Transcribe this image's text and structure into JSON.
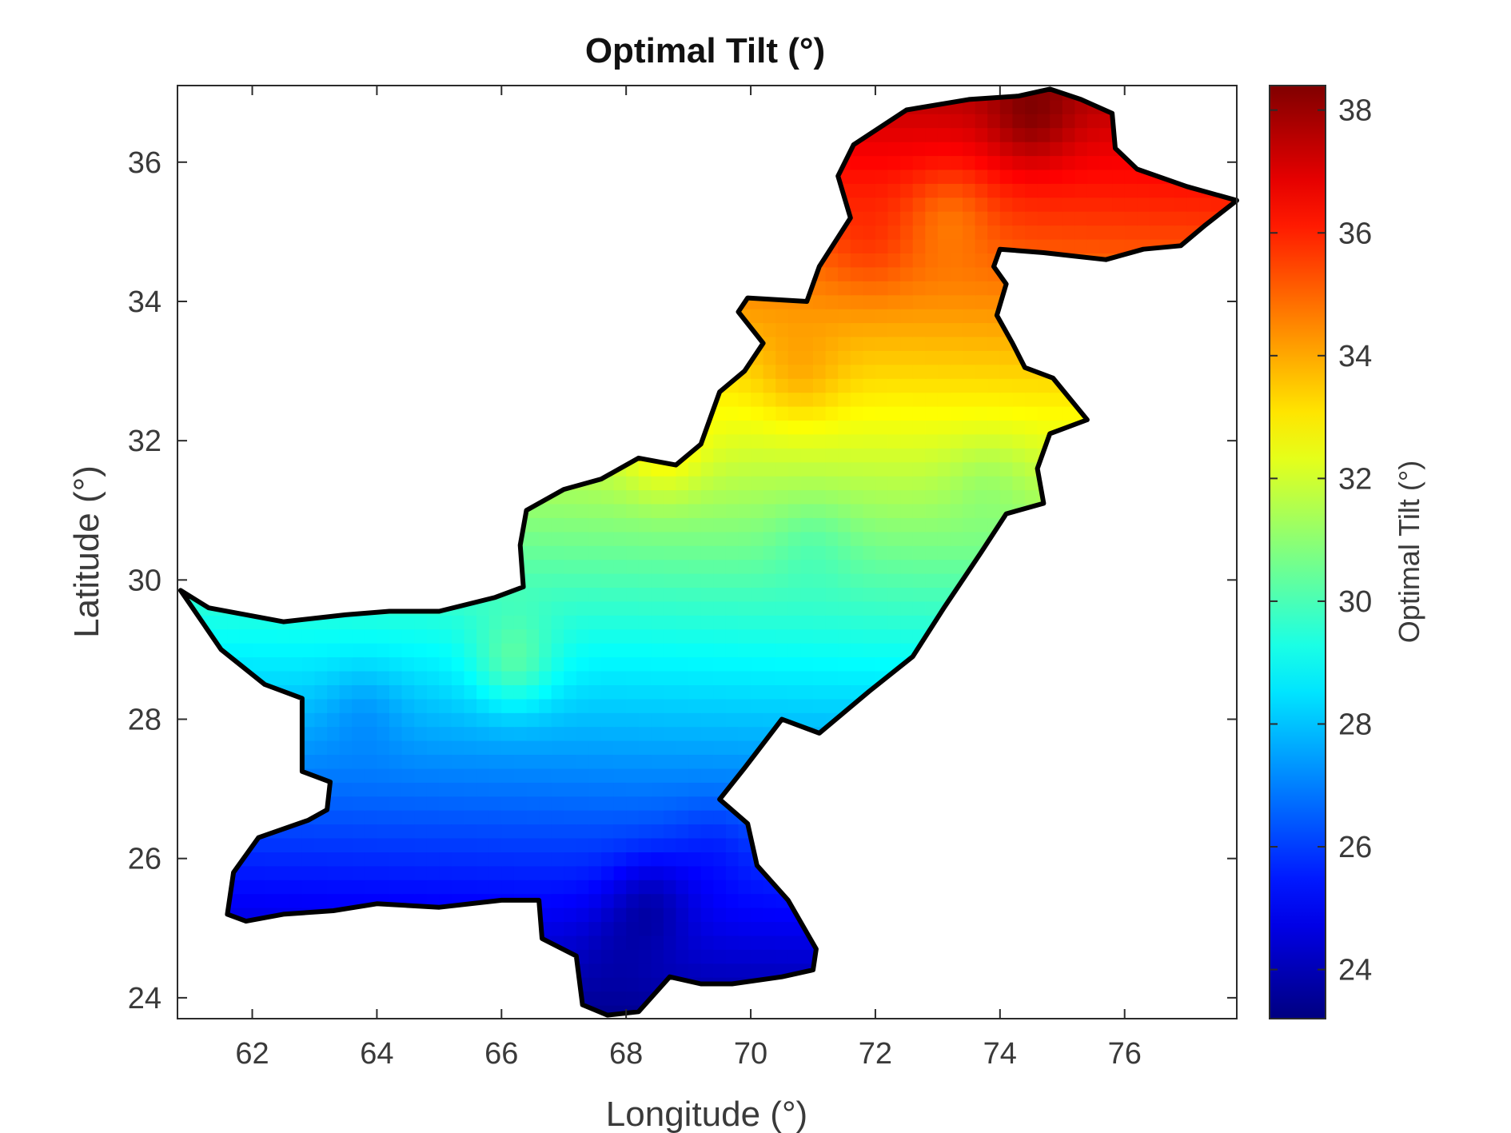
{
  "chart_data": {
    "type": "heatmap",
    "title": "Optimal Tilt (°)",
    "xlabel": "Longitude (°)",
    "ylabel": "Latitude (°)",
    "colorbar_label": "Optimal Tilt (°)",
    "colormap": "jet",
    "xlim": [
      60.8,
      77.8
    ],
    "ylim": [
      23.7,
      37.1
    ],
    "x_ticks": [
      62,
      64,
      66,
      68,
      70,
      72,
      74,
      76
    ],
    "y_ticks": [
      24,
      26,
      28,
      30,
      32,
      34,
      36
    ],
    "clim": [
      23.2,
      38.4
    ],
    "colorbar_ticks": [
      24,
      26,
      28,
      30,
      32,
      34,
      36,
      38
    ],
    "grid": false,
    "region": "Pakistan",
    "boundary": [
      [
        60.85,
        29.85
      ],
      [
        61.3,
        29.6
      ],
      [
        62.5,
        29.4
      ],
      [
        63.5,
        29.5
      ],
      [
        64.2,
        29.55
      ],
      [
        65.0,
        29.55
      ],
      [
        65.9,
        29.75
      ],
      [
        66.35,
        29.9
      ],
      [
        66.3,
        30.5
      ],
      [
        66.4,
        31.0
      ],
      [
        67.0,
        31.3
      ],
      [
        67.6,
        31.45
      ],
      [
        68.2,
        31.75
      ],
      [
        68.8,
        31.65
      ],
      [
        69.2,
        31.95
      ],
      [
        69.5,
        32.7
      ],
      [
        69.9,
        33.0
      ],
      [
        70.2,
        33.4
      ],
      [
        69.8,
        33.85
      ],
      [
        69.95,
        34.05
      ],
      [
        70.9,
        34.0
      ],
      [
        71.1,
        34.5
      ],
      [
        71.6,
        35.2
      ],
      [
        71.4,
        35.8
      ],
      [
        71.65,
        36.25
      ],
      [
        72.5,
        36.75
      ],
      [
        73.5,
        36.9
      ],
      [
        74.3,
        36.95
      ],
      [
        74.8,
        37.05
      ],
      [
        75.3,
        36.9
      ],
      [
        75.8,
        36.7
      ],
      [
        75.85,
        36.2
      ],
      [
        76.2,
        35.9
      ],
      [
        77.0,
        35.65
      ],
      [
        77.8,
        35.45
      ],
      [
        77.3,
        35.1
      ],
      [
        76.9,
        34.8
      ],
      [
        76.3,
        34.75
      ],
      [
        75.7,
        34.6
      ],
      [
        75.2,
        34.65
      ],
      [
        74.7,
        34.7
      ],
      [
        74.0,
        34.75
      ],
      [
        73.9,
        34.5
      ],
      [
        74.1,
        34.25
      ],
      [
        73.95,
        33.8
      ],
      [
        74.2,
        33.4
      ],
      [
        74.4,
        33.05
      ],
      [
        74.85,
        32.9
      ],
      [
        75.4,
        32.3
      ],
      [
        74.8,
        32.1
      ],
      [
        74.6,
        31.6
      ],
      [
        74.7,
        31.1
      ],
      [
        74.1,
        30.95
      ],
      [
        73.7,
        30.4
      ],
      [
        73.4,
        30.0
      ],
      [
        73.1,
        29.6
      ],
      [
        72.6,
        28.9
      ],
      [
        71.9,
        28.4
      ],
      [
        71.1,
        27.8
      ],
      [
        70.5,
        28.0
      ],
      [
        69.9,
        27.3
      ],
      [
        69.5,
        26.85
      ],
      [
        69.95,
        26.5
      ],
      [
        70.1,
        25.9
      ],
      [
        70.6,
        25.4
      ],
      [
        71.05,
        24.7
      ],
      [
        71.0,
        24.4
      ],
      [
        70.5,
        24.3
      ],
      [
        69.7,
        24.2
      ],
      [
        69.2,
        24.2
      ],
      [
        68.7,
        24.3
      ],
      [
        68.2,
        23.8
      ],
      [
        67.7,
        23.75
      ],
      [
        67.3,
        23.9
      ],
      [
        67.2,
        24.6
      ],
      [
        66.65,
        24.85
      ],
      [
        66.6,
        25.4
      ],
      [
        66.0,
        25.4
      ],
      [
        65.0,
        25.3
      ],
      [
        64.0,
        25.35
      ],
      [
        63.3,
        25.25
      ],
      [
        62.5,
        25.2
      ],
      [
        61.9,
        25.1
      ],
      [
        61.6,
        25.2
      ],
      [
        61.7,
        25.8
      ],
      [
        62.1,
        26.3
      ],
      [
        62.9,
        26.55
      ],
      [
        63.2,
        26.7
      ],
      [
        63.25,
        27.1
      ],
      [
        62.8,
        27.25
      ],
      [
        62.8,
        27.9
      ],
      [
        62.8,
        28.3
      ],
      [
        62.2,
        28.5
      ],
      [
        61.5,
        29.0
      ],
      [
        60.85,
        29.85
      ]
    ],
    "anomalies": [
      {
        "lon": 63.8,
        "lat": 28.2,
        "value": -0.6
      },
      {
        "lon": 66.2,
        "lat": 28.8,
        "value": 1.4
      },
      {
        "lon": 68.4,
        "lat": 25.4,
        "value": -1.2
      },
      {
        "lon": 67.8,
        "lat": 24.8,
        "value": -0.4
      },
      {
        "lon": 69.4,
        "lat": 26.2,
        "value": -0.5
      },
      {
        "lon": 71.0,
        "lat": 30.6,
        "value": -0.5
      },
      {
        "lon": 68.6,
        "lat": 31.8,
        "value": 0.9
      },
      {
        "lon": 70.8,
        "lat": 32.9,
        "value": 0.7
      },
      {
        "lon": 73.2,
        "lat": 35.3,
        "value": -0.9
      },
      {
        "lon": 74.5,
        "lat": 36.6,
        "value": 1.1
      },
      {
        "lon": 71.9,
        "lat": 34.7,
        "value": 0.5
      },
      {
        "lon": 73.8,
        "lat": 31.5,
        "value": -0.5
      }
    ]
  }
}
